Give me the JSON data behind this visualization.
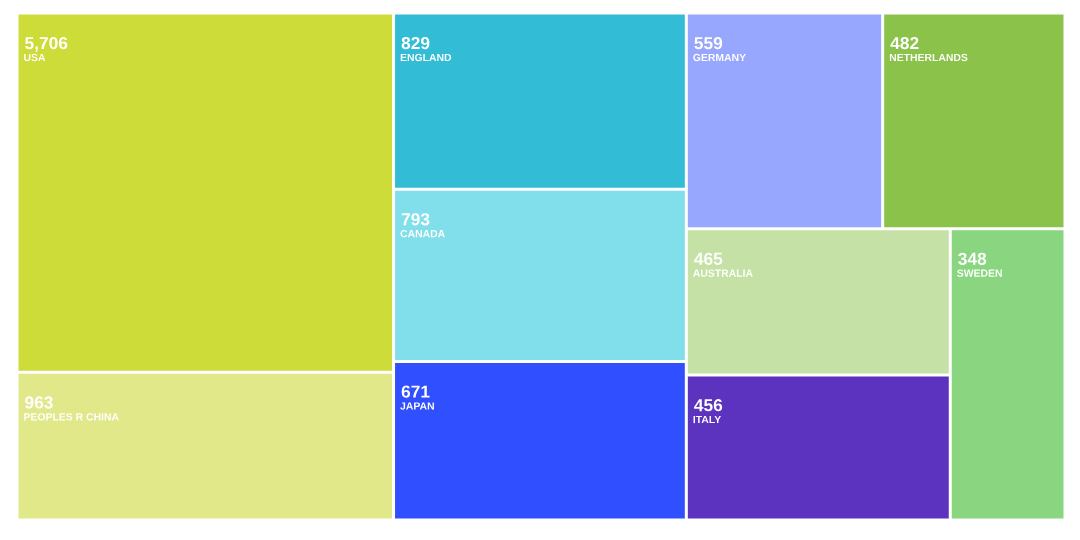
{
  "chart_data": {
    "type": "other",
    "categories": [
      "USA",
      "PEOPLES R CHINA",
      "ENGLAND",
      "CANADA",
      "JAPAN",
      "GERMANY",
      "NETHERLANDS",
      "AUSTRALIA",
      "ITALY",
      "SWEDEN"
    ],
    "values": [
      5706,
      963,
      829,
      793,
      671,
      559,
      482,
      465,
      456,
      348
    ],
    "value_labels": [
      "5,706",
      "963",
      "829",
      "793",
      "671",
      "559",
      "482",
      "465",
      "456",
      "348"
    ],
    "colors": [
      "#cddc39",
      "#e0e88a",
      "#33bcd6",
      "#80dfea",
      "#304ffe",
      "#96a7fd",
      "#8bc34a",
      "#c5e1a5",
      "#5c33bf",
      "#8ad57f"
    ]
  }
}
